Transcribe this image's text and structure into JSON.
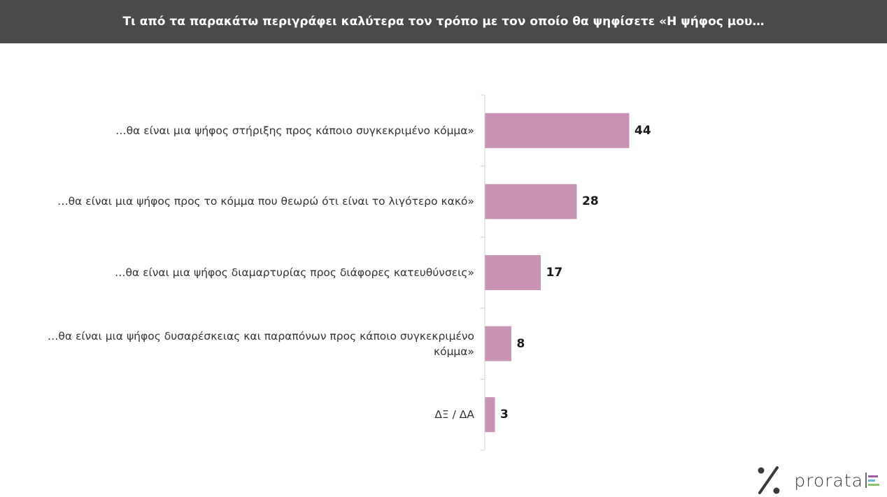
{
  "header": {
    "title": "Τι από τα παρακάτω περιγράφει καλύτερα τον τρόπο με τον οποίο θα ψηφίσετε «Η ψήφος μου…"
  },
  "colors": {
    "header_bg": "#4a4a4a",
    "bar": "#c893b5",
    "axis": "#d0d0d0",
    "logo_bars": [
      "#9e5fa0",
      "#5fb6d6",
      "#8ac26a"
    ]
  },
  "logo": {
    "brand_text": "prorata",
    "icon": "percent-icon"
  },
  "chart_data": {
    "type": "bar",
    "orientation": "horizontal",
    "categories": [
      "…θα είναι μια ψήφος στήριξης προς κάποιο συγκεκριμένο κόμμα»",
      "…θα είναι μια ψήφος προς το κόμμα που θεωρώ ότι είναι το λιγότερο κακό»",
      "…θα είναι μια ψήφος διαμαρτυρίας προς διάφορες κατευθύνσεις»",
      "…θα είναι μια ψήφος δυσαρέσκειας και παραπόνων προς κάποιο συγκεκριμένο κόμμα»",
      "ΔΞ / ΔΑ"
    ],
    "values": [
      44,
      28,
      17,
      8,
      3
    ],
    "value_labels": [
      "44",
      "28",
      "17",
      "8",
      "3"
    ],
    "xlim": [
      0,
      100
    ],
    "grid": false,
    "legend": "none"
  }
}
